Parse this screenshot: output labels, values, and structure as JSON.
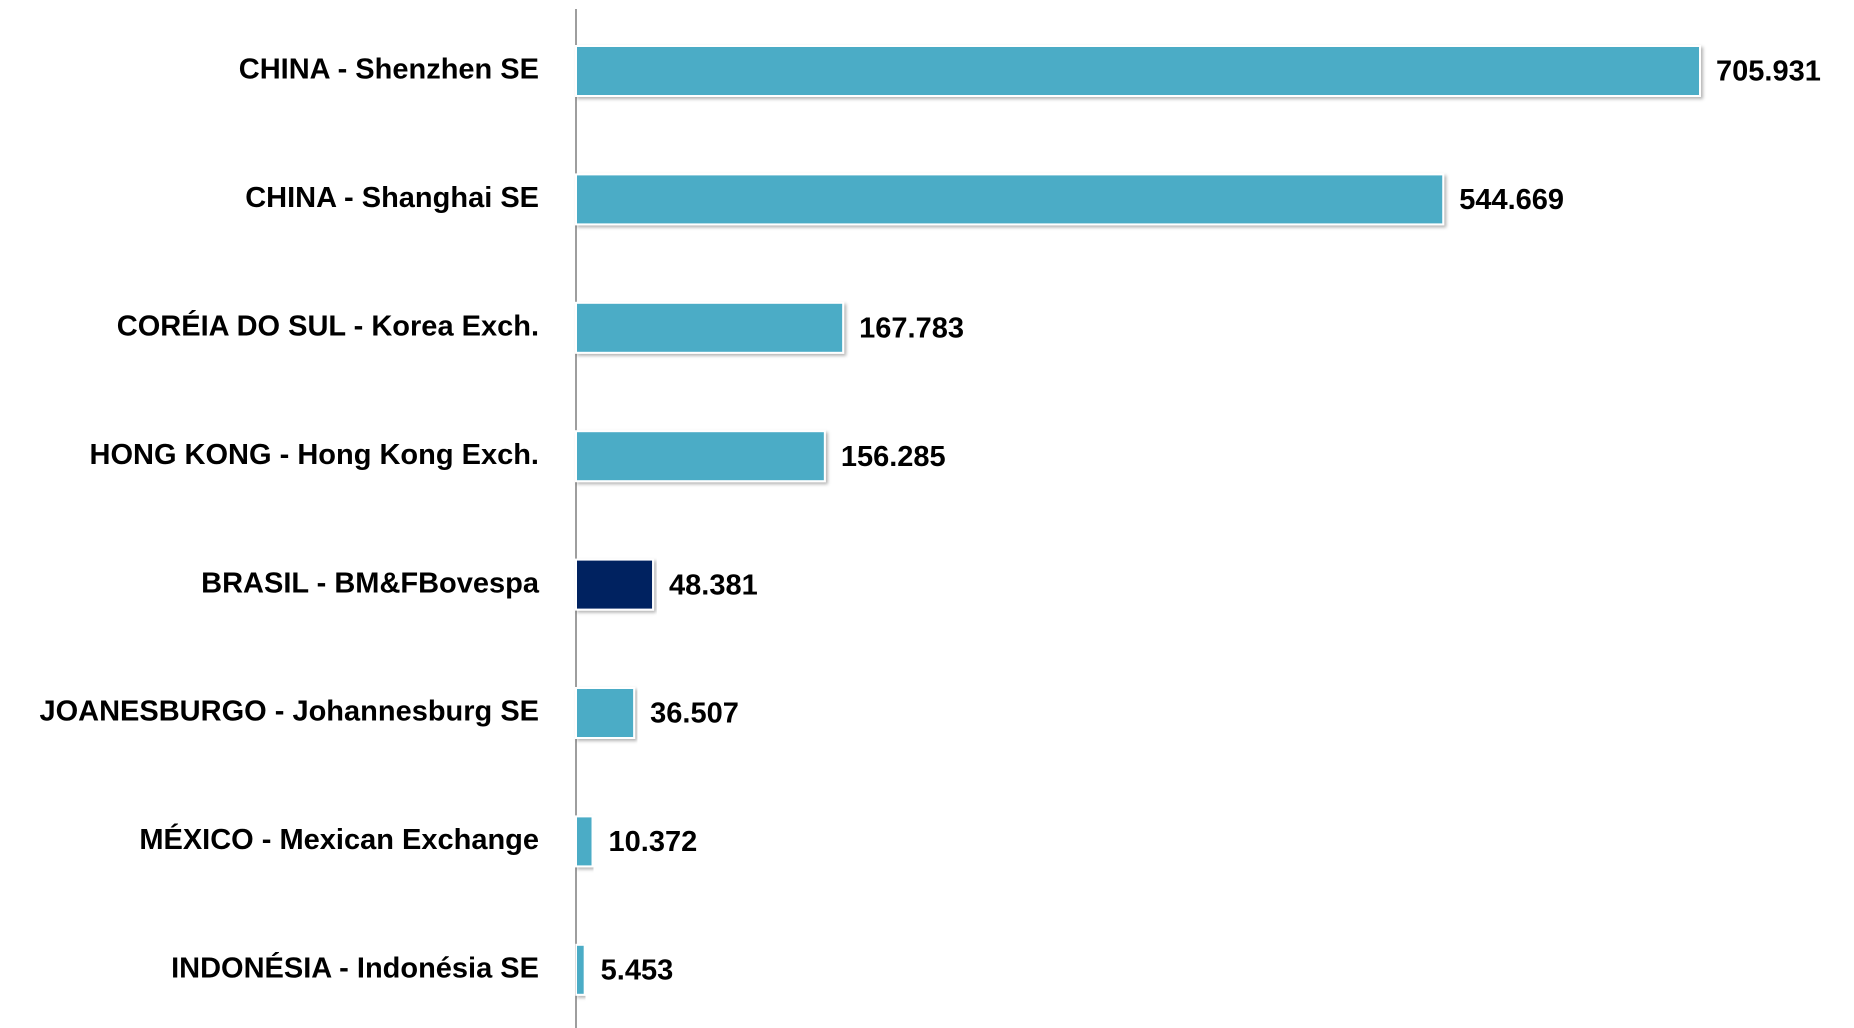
{
  "chart_data": {
    "type": "barh",
    "categories": [
      "CHINA - Shenzhen SE",
      "CHINA - Shanghai SE",
      "CORÉIA DO SUL - Korea Exch.",
      "HONG KONG - Hong Kong Exch.",
      "BRASIL - BM&FBovespa",
      "JOANESBURGO - Johannesburg SE",
      "MÉXICO - Mexican Exchange",
      "INDONÉSIA - Indonésia SE"
    ],
    "values": [
      705931,
      544669,
      167783,
      156285,
      48381,
      36507,
      10372,
      5453
    ],
    "value_labels": [
      "705.931",
      "544.669",
      "167.783",
      "156.285",
      "48.381",
      "36.507",
      "10.372",
      "5.453"
    ],
    "colors": [
      "#4bacc6",
      "#4bacc6",
      "#4bacc6",
      "#4bacc6",
      "#002060",
      "#4bacc6",
      "#4bacc6",
      "#4bacc6"
    ]
  }
}
